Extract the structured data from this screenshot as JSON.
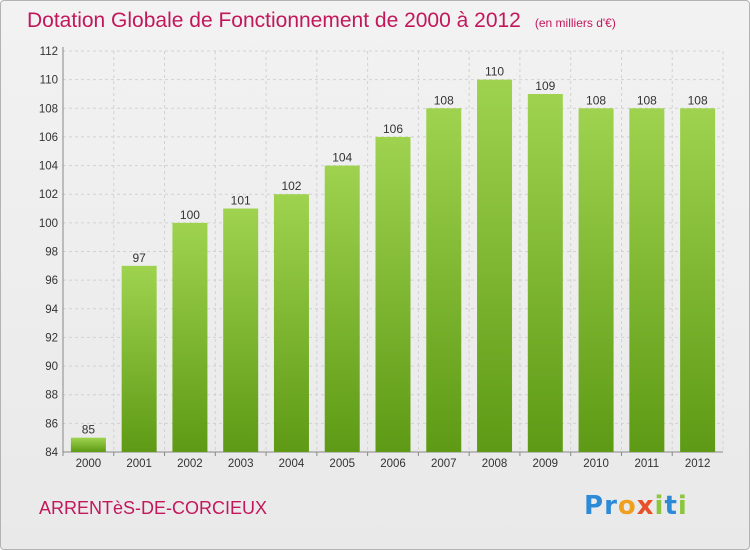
{
  "chart_data": {
    "type": "bar",
    "title": "Dotation Globale de Fonctionnement de 2000 à 2012",
    "unit_note": "(en milliers d'€)",
    "categories": [
      "2000",
      "2001",
      "2002",
      "2003",
      "2004",
      "2005",
      "2006",
      "2007",
      "2008",
      "2009",
      "2010",
      "2011",
      "2012"
    ],
    "values": [
      85,
      97,
      100,
      101,
      102,
      104,
      106,
      108,
      110,
      109,
      108,
      108,
      108
    ],
    "ylim": [
      84,
      112
    ],
    "yticks": [
      84,
      86,
      88,
      90,
      92,
      94,
      96,
      98,
      100,
      102,
      104,
      106,
      108,
      110,
      112
    ],
    "xlabel": "",
    "ylabel": "",
    "grid": true,
    "bar_color": "#8cc63f",
    "bar_color_dark": "#5e9a15"
  },
  "footer": {
    "commune": "ARRENTèS-DE-CORCIEUX",
    "logo": "Proxiti"
  }
}
